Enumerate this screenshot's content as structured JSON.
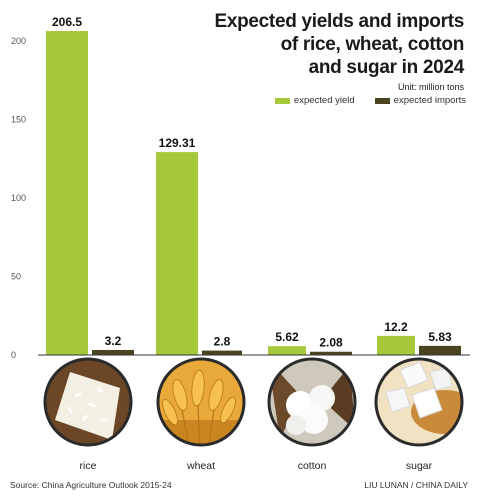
{
  "title_lines": [
    "Expected yields and imports",
    "of rice, wheat, cotton",
    "and sugar in 2024"
  ],
  "unit": "Unit: million tons",
  "source": "Source: China Agriculture Outlook 2015-24",
  "credit": "LIU LUNAN / CHINA DAILY",
  "colors": {
    "yield": "#a5c93a",
    "imports": "#4a4420",
    "axis": "#333333",
    "tick": "#555555"
  },
  "chart_data": {
    "type": "bar",
    "categories": [
      "rice",
      "wheat",
      "cotton",
      "sugar"
    ],
    "series": [
      {
        "name": "expected yield",
        "values": [
          206.5,
          129.31,
          5.62,
          12.2
        ],
        "labels": [
          "206.5",
          "129.31",
          "5.62",
          "12.2"
        ]
      },
      {
        "name": "expected imports",
        "values": [
          3.2,
          2.8,
          2.08,
          5.83
        ],
        "labels": [
          "3.2",
          "2.8",
          "2.08",
          "5.83"
        ]
      }
    ],
    "yticks": [
      0,
      50,
      100,
      150,
      200
    ],
    "ylim": [
      0,
      206.5
    ],
    "grid": false,
    "legend": "top-right"
  },
  "category_images": [
    "rice-grains-photo",
    "wheat-ears-photo",
    "cotton-boll-photo",
    "sugar-cubes-photo"
  ]
}
